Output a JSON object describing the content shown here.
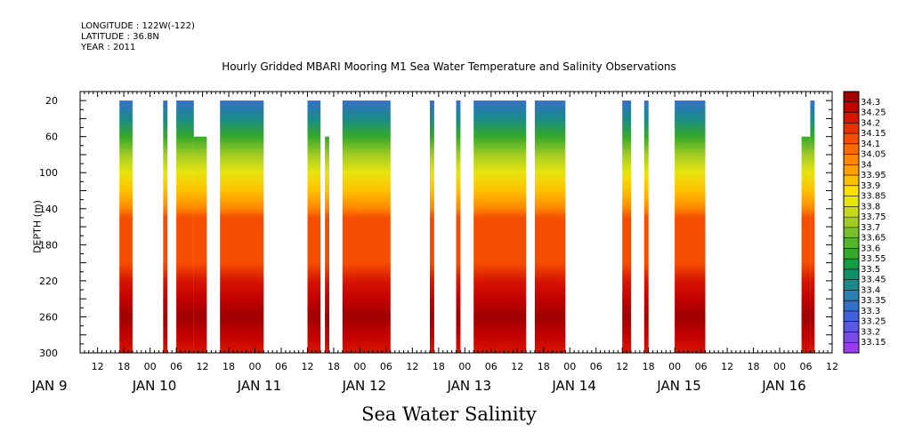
{
  "meta": {
    "longitude": "LONGITUDE : 122W(-122)",
    "latitude": "LATITUDE : 36.8N",
    "year": "YEAR : 2011"
  },
  "title": "Hourly Gridded MBARI Mooring M1 Sea Water Temperature and Salinity Observations",
  "xlabel": "Sea Water Salinity",
  "ylabel": "DEPTH (m)",
  "colors": {
    "palette": [
      "#c800ff",
      "#9a3cf0",
      "#7a4ae6",
      "#5a58e0",
      "#4060e0",
      "#3570c8",
      "#2a80b0",
      "#1a8a8a",
      "#10906a",
      "#159c46",
      "#35a82a",
      "#55b32c",
      "#79bf2a",
      "#a1cb24",
      "#c8d81a",
      "#e8e40e",
      "#ffe000",
      "#ffc000",
      "#ffa000",
      "#ff8600",
      "#fc6a00",
      "#f54e00",
      "#e83000",
      "#d81500",
      "#c20000",
      "#a00000"
    ]
  },
  "chart_data": {
    "type": "heatmap",
    "title": "Hourly Gridded MBARI Mooring M1 Sea Water Temperature and Salinity Observations",
    "xlabel": "Sea Water Salinity",
    "ylabel": "DEPTH (m)",
    "ylim": [
      300,
      10
    ],
    "y_ticks": [
      20,
      60,
      100,
      140,
      180,
      220,
      260,
      300
    ],
    "x_ticks": [
      "12",
      "18",
      "00",
      "06",
      "12",
      "18",
      "00",
      "06",
      "12",
      "18",
      "00",
      "06",
      "12",
      "18",
      "00",
      "06",
      "12",
      "18",
      "00",
      "06",
      "12",
      "18",
      "00",
      "06",
      "12",
      "18",
      "00",
      "06",
      "12",
      "18",
      "00",
      "06",
      "12",
      "18",
      "00",
      "06"
    ],
    "x_day_labels": [
      "JAN  9",
      "JAN 10",
      "JAN 11",
      "JAN 12",
      "JAN 13",
      "JAN 14",
      "JAN 15",
      "JAN 16"
    ],
    "colorbar_levels": [
      "34.3",
      "34.25",
      "34.2",
      "34.15",
      "34.1",
      "34.05",
      "34",
      "33.95",
      "33.9",
      "33.85",
      "33.8",
      "33.75",
      "33.7",
      "33.65",
      "33.6",
      "33.55",
      "33.5",
      "33.45",
      "33.4",
      "33.35",
      "33.3",
      "33.25",
      "33.2",
      "33.15"
    ],
    "profile": [
      {
        "depth": 20,
        "salinity": 33.3
      },
      {
        "depth": 40,
        "salinity": 33.4
      },
      {
        "depth": 60,
        "salinity": 33.55
      },
      {
        "depth": 80,
        "salinity": 33.7
      },
      {
        "depth": 100,
        "salinity": 33.8
      },
      {
        "depth": 120,
        "salinity": 33.9
      },
      {
        "depth": 140,
        "salinity": 34.0
      },
      {
        "depth": 150,
        "salinity": 34.1
      },
      {
        "depth": 200,
        "salinity": 34.1
      },
      {
        "depth": 220,
        "salinity": 34.2
      },
      {
        "depth": 240,
        "salinity": 34.25
      },
      {
        "depth": 260,
        "salinity": 34.3
      },
      {
        "depth": 280,
        "salinity": 34.25
      },
      {
        "depth": 300,
        "salinity": 34.2
      }
    ],
    "data_segments": [
      {
        "start": "JAN 9 17:00",
        "end": "JAN 9 20:00",
        "top_depth": 20
      },
      {
        "start": "JAN 10 03:00",
        "end": "JAN 10 04:00",
        "top_depth": 20
      },
      {
        "start": "JAN 10 06:00",
        "end": "JAN 10 10:00",
        "top_depth": 20
      },
      {
        "start": "JAN 10 10:00",
        "end": "JAN 10 13:00",
        "top_depth": 60
      },
      {
        "start": "JAN 10 16:00",
        "end": "JAN 11 02:00",
        "top_depth": 20
      },
      {
        "start": "JAN 11 12:00",
        "end": "JAN 11 15:00",
        "top_depth": 20
      },
      {
        "start": "JAN 11 16:00",
        "end": "JAN 11 17:00",
        "top_depth": 60
      },
      {
        "start": "JAN 11 20:00",
        "end": "JAN 12 07:00",
        "top_depth": 20
      },
      {
        "start": "JAN 12 16:00",
        "end": "JAN 12 17:00",
        "top_depth": 20
      },
      {
        "start": "JAN 12 22:00",
        "end": "JAN 12 23:00",
        "top_depth": 20
      },
      {
        "start": "JAN 13 02:00",
        "end": "JAN 13 14:00",
        "top_depth": 20
      },
      {
        "start": "JAN 13 16:00",
        "end": "JAN 13 23:00",
        "top_depth": 20
      },
      {
        "start": "JAN 14 12:00",
        "end": "JAN 14 14:00",
        "top_depth": 20
      },
      {
        "start": "JAN 14 17:00",
        "end": "JAN 14 18:00",
        "top_depth": 20
      },
      {
        "start": "JAN 15 00:00",
        "end": "JAN 15 07:00",
        "top_depth": 20
      },
      {
        "start": "JAN 16 05:00",
        "end": "JAN 16 07:00",
        "top_depth": 60
      },
      {
        "start": "JAN 16 07:00",
        "end": "JAN 16 08:00",
        "top_depth": 20
      }
    ]
  }
}
